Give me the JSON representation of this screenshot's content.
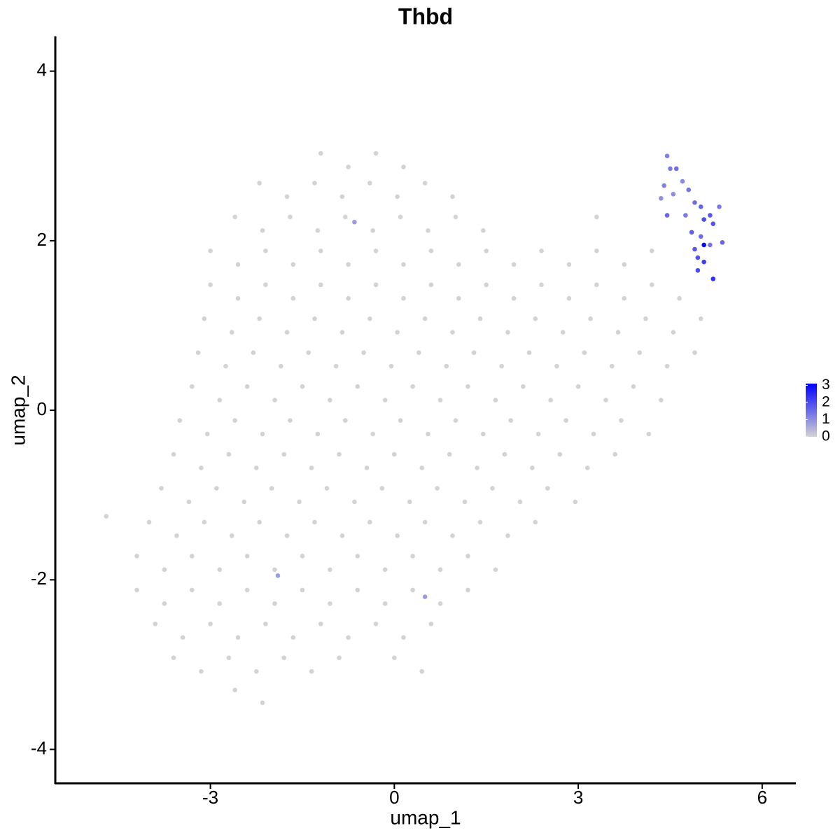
{
  "chart_data": {
    "type": "scatter",
    "title": "Thbd",
    "x_label": "umap_1",
    "y_label": "umap_2",
    "xlim": [
      -5.53,
      6.55
    ],
    "ylim": [
      -4.4,
      4.41
    ],
    "xticks": [
      -3,
      0,
      3,
      6
    ],
    "yticks": [
      -4,
      -2,
      0,
      2,
      4
    ],
    "grid": false,
    "color_scale": {
      "low_color": "#d3d3d3",
      "high_color": "#0000ff",
      "lim": [
        0,
        3.1
      ],
      "ticks": [
        0,
        1,
        2,
        3
      ]
    },
    "series": [
      {
        "color": "#d3d3d3",
        "x": [
          -1.2,
          -0.75,
          -0.3,
          0.15,
          -2.2,
          -1.75,
          -1.3,
          -0.85,
          -0.4,
          0.05,
          0.5,
          0.95,
          -2.6,
          -2.15,
          -1.7,
          -1.25,
          -0.8,
          -0.35,
          0.1,
          0.55,
          1.0,
          1.45,
          3.3,
          -3.0,
          -2.55,
          -2.1,
          -1.65,
          -1.2,
          -0.75,
          -0.3,
          0.15,
          0.6,
          1.05,
          1.5,
          1.95,
          2.4,
          2.85,
          3.3,
          3.75,
          4.2,
          -3.0,
          -2.55,
          -2.1,
          -1.65,
          -1.2,
          -0.75,
          -0.3,
          0.15,
          0.6,
          1.05,
          1.5,
          1.95,
          2.4,
          2.85,
          3.3,
          3.75,
          4.2,
          4.65,
          -3.1,
          -2.65,
          -2.2,
          -1.75,
          -1.3,
          -0.85,
          -0.4,
          0.05,
          0.5,
          0.95,
          1.4,
          1.85,
          2.3,
          2.75,
          3.2,
          3.65,
          4.1,
          4.55,
          5.0,
          -3.2,
          -2.75,
          -2.3,
          -1.85,
          -1.4,
          -0.95,
          -0.5,
          -0.05,
          0.4,
          0.85,
          1.3,
          1.75,
          2.2,
          2.65,
          3.1,
          3.55,
          4.0,
          4.45,
          4.9,
          -3.3,
          -2.85,
          -2.4,
          -1.95,
          -1.5,
          -1.05,
          -0.6,
          -0.15,
          0.3,
          0.75,
          1.2,
          1.65,
          2.1,
          2.55,
          3.0,
          3.45,
          3.9,
          4.35,
          -3.5,
          -3.05,
          -2.6,
          -2.15,
          -1.7,
          -1.25,
          -0.8,
          -0.35,
          0.1,
          0.55,
          1.0,
          1.45,
          1.9,
          2.35,
          2.8,
          3.25,
          3.7,
          4.15,
          -3.6,
          -3.15,
          -2.7,
          -2.25,
          -1.8,
          -1.35,
          -0.9,
          -0.45,
          0.0,
          0.45,
          0.9,
          1.35,
          1.8,
          2.25,
          2.7,
          3.15,
          3.6,
          -3.8,
          -3.35,
          -2.9,
          -2.45,
          -2.0,
          -1.55,
          -1.1,
          -0.65,
          -0.2,
          0.25,
          0.7,
          1.15,
          1.6,
          2.05,
          2.5,
          2.95,
          -4.7,
          -4.0,
          -3.55,
          -3.1,
          -2.65,
          -2.2,
          -1.75,
          -1.3,
          -0.85,
          -0.4,
          0.05,
          0.5,
          0.95,
          1.4,
          1.85,
          2.3,
          -4.2,
          -3.75,
          -3.3,
          -2.85,
          -2.4,
          -1.95,
          -1.5,
          -1.05,
          -0.6,
          -0.15,
          0.3,
          0.75,
          1.2,
          1.65,
          -4.2,
          -3.75,
          -3.3,
          -2.85,
          -2.4,
          -1.95,
          -1.5,
          -1.05,
          -0.6,
          -0.15,
          0.3,
          0.75,
          1.2,
          -3.9,
          -3.45,
          -3.0,
          -2.55,
          -2.1,
          -1.65,
          -1.2,
          -0.75,
          -0.3,
          0.15,
          0.6,
          -3.6,
          -3.15,
          -2.7,
          -2.25,
          -1.8,
          -1.35,
          -0.9,
          0.0,
          0.45,
          -2.6,
          -2.15
        ],
        "values": [
          3.03,
          2.87,
          3.03,
          2.87,
          2.68,
          2.52,
          2.68,
          2.52,
          2.68,
          2.52,
          2.68,
          2.52,
          2.28,
          2.12,
          2.28,
          2.12,
          2.28,
          2.12,
          2.28,
          2.12,
          2.28,
          2.12,
          2.28,
          1.88,
          1.72,
          1.88,
          1.72,
          1.88,
          1.72,
          1.88,
          1.72,
          1.88,
          1.72,
          1.88,
          1.72,
          1.88,
          1.72,
          1.88,
          1.72,
          1.88,
          1.48,
          1.32,
          1.48,
          1.32,
          1.48,
          1.32,
          1.48,
          1.32,
          1.48,
          1.32,
          1.48,
          1.32,
          1.48,
          1.32,
          1.48,
          1.32,
          1.48,
          1.32,
          1.08,
          0.92,
          1.08,
          0.92,
          1.08,
          0.92,
          1.08,
          0.92,
          1.08,
          0.92,
          1.08,
          0.92,
          1.08,
          0.92,
          1.08,
          0.92,
          1.08,
          0.92,
          1.08,
          0.68,
          0.52,
          0.68,
          0.52,
          0.68,
          0.52,
          0.68,
          0.52,
          0.68,
          0.52,
          0.68,
          0.52,
          0.68,
          0.52,
          0.68,
          0.52,
          0.68,
          0.52,
          0.68,
          0.28,
          0.12,
          0.28,
          0.12,
          0.28,
          0.12,
          0.28,
          0.12,
          0.28,
          0.12,
          0.28,
          0.12,
          0.28,
          0.12,
          0.28,
          0.12,
          0.28,
          0.12,
          -0.12,
          -0.28,
          -0.12,
          -0.28,
          -0.12,
          -0.28,
          -0.12,
          -0.28,
          -0.12,
          -0.28,
          -0.12,
          -0.28,
          -0.12,
          -0.28,
          -0.12,
          -0.28,
          -0.12,
          -0.28,
          -0.52,
          -0.68,
          -0.52,
          -0.68,
          -0.52,
          -0.68,
          -0.52,
          -0.68,
          -0.52,
          -0.68,
          -0.52,
          -0.68,
          -0.52,
          -0.68,
          -0.52,
          -0.68,
          -0.52,
          -0.92,
          -1.08,
          -0.92,
          -1.08,
          -0.92,
          -1.08,
          -0.92,
          -1.08,
          -0.92,
          -1.08,
          -0.92,
          -1.08,
          -0.92,
          -1.08,
          -0.92,
          -1.08,
          -1.25,
          -1.32,
          -1.48,
          -1.32,
          -1.48,
          -1.32,
          -1.48,
          -1.32,
          -1.48,
          -1.32,
          -1.48,
          -1.32,
          -1.48,
          -1.32,
          -1.48,
          -1.32,
          -1.72,
          -1.88,
          -1.72,
          -1.88,
          -1.72,
          -1.88,
          -1.72,
          -1.88,
          -1.72,
          -1.88,
          -1.72,
          -1.88,
          -1.72,
          -1.88,
          -2.12,
          -2.28,
          -2.12,
          -2.28,
          -2.12,
          -2.28,
          -2.12,
          -2.28,
          -2.12,
          -2.28,
          -2.12,
          -2.28,
          -2.12,
          -2.52,
          -2.68,
          -2.52,
          -2.68,
          -2.52,
          -2.68,
          -2.52,
          -2.68,
          -2.52,
          -2.68,
          -2.52,
          -2.92,
          -3.08,
          -2.92,
          -3.08,
          -2.92,
          -3.08,
          -2.92,
          -2.92,
          -3.08,
          -3.3,
          -3.45
        ]
      },
      {
        "x": [
          4.45,
          4.5,
          4.6,
          4.4,
          4.55,
          4.7,
          4.35,
          4.8,
          4.9,
          4.45,
          4.75,
          5.0,
          5.15,
          5.3,
          5.05,
          5.2,
          4.85,
          5.0,
          4.9,
          5.05,
          5.15,
          5.35,
          4.95,
          5.05,
          4.95,
          5.2,
          -0.65,
          -1.9,
          0.5
        ],
        "values": [
          3.0,
          2.85,
          2.85,
          2.65,
          2.55,
          2.7,
          2.5,
          2.6,
          2.45,
          2.3,
          2.3,
          2.4,
          2.3,
          2.4,
          2.25,
          2.2,
          2.1,
          2.05,
          1.9,
          1.95,
          1.95,
          1.98,
          1.8,
          1.75,
          1.65,
          1.55,
          2.22,
          -1.95,
          -2.2
        ],
        "expression": [
          1.2,
          1.3,
          1.5,
          1.2,
          1.0,
          1.1,
          1.0,
          1.4,
          1.5,
          1.6,
          1.3,
          1.6,
          1.8,
          1.3,
          2.0,
          1.9,
          1.7,
          1.5,
          1.8,
          3.0,
          1.4,
          1.6,
          1.9,
          2.2,
          2.0,
          2.4,
          0.8,
          0.8,
          0.8
        ]
      }
    ]
  }
}
